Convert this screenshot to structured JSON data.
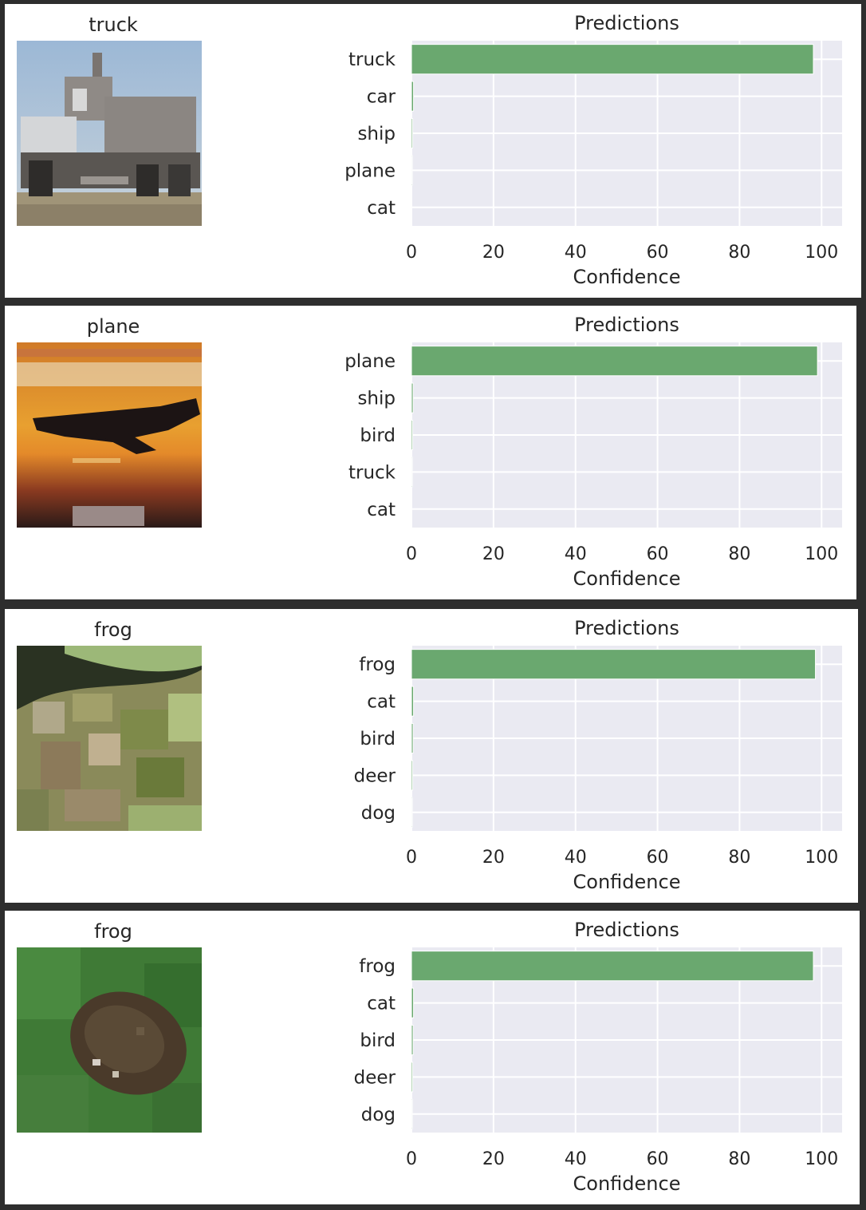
{
  "chart_data": [
    {
      "type": "bar",
      "orientation": "horizontal",
      "title": "Predictions",
      "xlabel": "Confidence",
      "xlim": [
        0,
        100
      ],
      "xticks": [
        "0",
        "20",
        "40",
        "60",
        "80",
        "100"
      ],
      "categories": [
        "truck",
        "car",
        "ship",
        "plane",
        "cat"
      ],
      "values": [
        98,
        0.5,
        0.3,
        0.2,
        0.1
      ],
      "grid": true,
      "bar_color": "#6aa86f",
      "image_title": "truck",
      "image_subject": "truck"
    },
    {
      "type": "bar",
      "orientation": "horizontal",
      "title": "Predictions",
      "xlabel": "Confidence",
      "xlim": [
        0,
        100
      ],
      "xticks": [
        "0",
        "20",
        "40",
        "60",
        "80",
        "100"
      ],
      "categories": [
        "plane",
        "ship",
        "bird",
        "truck",
        "cat"
      ],
      "values": [
        99,
        0.4,
        0.3,
        0.2,
        0.1
      ],
      "grid": true,
      "bar_color": "#6aa86f",
      "image_title": "plane",
      "image_subject": "plane"
    },
    {
      "type": "bar",
      "orientation": "horizontal",
      "title": "Predictions",
      "xlabel": "Confidence",
      "xlim": [
        0,
        100
      ],
      "xticks": [
        "0",
        "20",
        "40",
        "60",
        "80",
        "100"
      ],
      "categories": [
        "frog",
        "cat",
        "bird",
        "deer",
        "dog"
      ],
      "values": [
        98.5,
        0.5,
        0.4,
        0.3,
        0.2
      ],
      "grid": true,
      "bar_color": "#6aa86f",
      "image_title": "frog",
      "image_subject": "frog-leaves"
    },
    {
      "type": "bar",
      "orientation": "horizontal",
      "title": "Predictions",
      "xlabel": "Confidence",
      "xlim": [
        0,
        100
      ],
      "xticks": [
        "0",
        "20",
        "40",
        "60",
        "80",
        "100"
      ],
      "categories": [
        "frog",
        "cat",
        "bird",
        "deer",
        "dog"
      ],
      "values": [
        98,
        0.5,
        0.4,
        0.3,
        0.2
      ],
      "grid": true,
      "bar_color": "#6aa86f",
      "image_title": "frog",
      "image_subject": "frog-grass"
    }
  ]
}
